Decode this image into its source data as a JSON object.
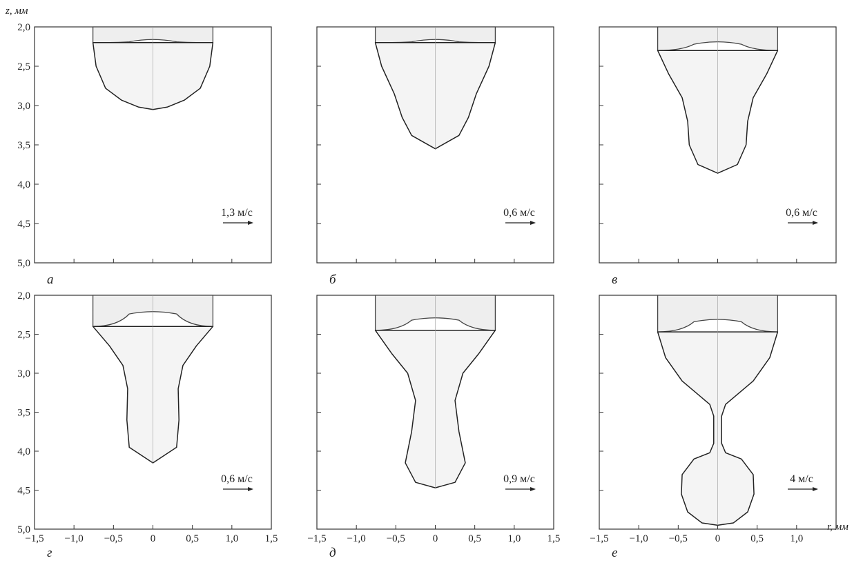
{
  "axes": {
    "z_label": "z, мм",
    "r_label": "r, мм",
    "z_ticks": [
      "2,0",
      "2,5",
      "3,0",
      "3,5",
      "4,0",
      "4,5",
      "5,0"
    ],
    "z_tick_values": [
      2.0,
      2.5,
      3.0,
      3.5,
      4.0,
      4.5,
      5.0
    ],
    "r_ticks": [
      "−1,5",
      "−1,0",
      "−0,5",
      "0",
      "0,5",
      "1,0",
      "1,5"
    ],
    "r_tick_values": [
      -1.5,
      -1.0,
      -0.5,
      0,
      0.5,
      1.0,
      1.5
    ],
    "r_range": [
      -1.5,
      1.5
    ],
    "z_range": [
      2.0,
      5.0
    ]
  },
  "panels": [
    {
      "letter": "а",
      "scale": "1,3 м/с",
      "electrode_bottom": 2.2,
      "bulge_top": 2.15
    },
    {
      "letter": "б",
      "scale": "0,6 м/с",
      "electrode_bottom": 2.2,
      "bulge_top": 2.15
    },
    {
      "letter": "в",
      "scale": "0,6 м/с",
      "electrode_bottom": 2.3,
      "bulge_top": 2.18
    },
    {
      "letter": "г",
      "scale": "0,6 м/с",
      "electrode_bottom": 2.4,
      "bulge_top": 2.2
    },
    {
      "letter": "д",
      "scale": "0,9 м/с",
      "electrode_bottom": 2.45,
      "bulge_top": 2.28
    },
    {
      "letter": "е",
      "scale": "4 м/с",
      "electrode_bottom": 2.47,
      "bulge_top": 2.3
    }
  ]
}
